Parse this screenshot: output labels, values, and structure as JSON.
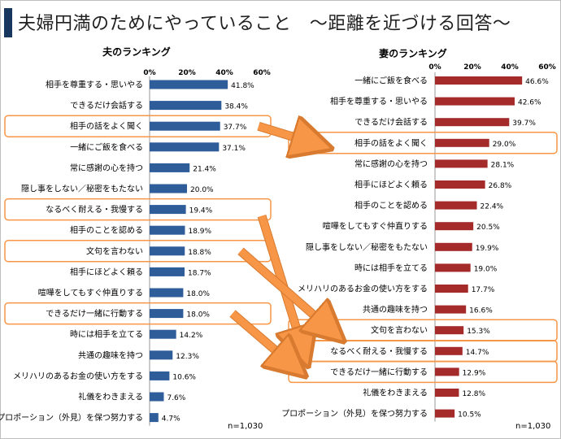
{
  "title": "夫婦円満のためにやっていること　～距離を近づける回答～",
  "colors": {
    "husband_bar": "#2e5d9a",
    "wife_bar": "#a52a2a",
    "highlight": "#f79646",
    "arrow": "#f79646",
    "title_accent": "#17375e"
  },
  "chart_data": [
    {
      "type": "bar",
      "orientation": "horizontal",
      "title": "夫のランキング",
      "xlim": [
        0,
        60
      ],
      "ticks": [
        "0%",
        "20%",
        "40%",
        "60%"
      ],
      "tick_values": [
        0,
        20,
        40,
        60
      ],
      "note": "n=1,030",
      "categories": [
        "相手を尊重する・思いやる",
        "できるだけ会話する",
        "相手の話をよく聞く",
        "一緒にご飯を食べる",
        "常に感謝の心を持つ",
        "隠し事をしない／秘密をもたない",
        "なるべく耐える・我慢する",
        "相手のことを認める",
        "文句を言わない",
        "相手にほどよく頼る",
        "喧嘩をしてもすぐ仲直りする",
        "できるだけ一緒に行動する",
        "時には相手を立てる",
        "共通の趣味を持つ",
        "メリハリのあるお金の使い方をする",
        "礼儀をわきまえる",
        "プロポーション（外見）を保つ努力する"
      ],
      "values": [
        41.8,
        38.4,
        37.7,
        37.1,
        21.4,
        20.0,
        19.4,
        18.9,
        18.8,
        18.7,
        18.0,
        18.0,
        14.2,
        12.3,
        10.6,
        7.6,
        4.7
      ],
      "value_labels": [
        "41.8%",
        "38.4%",
        "37.7%",
        "37.1%",
        "21.4%",
        "20.0%",
        "19.4%",
        "18.9%",
        "18.8%",
        "18.7%",
        "18.0%",
        "18.0%",
        "14.2%",
        "12.3%",
        "10.6%",
        "7.6%",
        "4.7%"
      ],
      "highlighted": [
        "相手の話をよく聞く",
        "なるべく耐える・我慢する",
        "文句を言わない",
        "できるだけ一緒に行動する"
      ]
    },
    {
      "type": "bar",
      "orientation": "horizontal",
      "title": "妻のランキング",
      "xlim": [
        0,
        60
      ],
      "ticks": [
        "0%",
        "20%",
        "40%",
        "60%"
      ],
      "tick_values": [
        0,
        20,
        40,
        60
      ],
      "note": "n=1,030",
      "categories": [
        "一緒にご飯を食べる",
        "相手を尊重する・思いやる",
        "できるだけ会話する",
        "相手の話をよく聞く",
        "常に感謝の心を持つ",
        "相手にほどよく頼る",
        "相手のことを認める",
        "喧嘩をしてもすぐ仲直りする",
        "隠し事をしない／秘密をもたない",
        "時には相手を立てる",
        "メリハリのあるお金の使い方をする",
        "共通の趣味を持つ",
        "文句を言わない",
        "なるべく耐える・我慢する",
        "できるだけ一緒に行動する",
        "礼儀をわきまえる",
        "プロポーション（外見）を保つ努力する"
      ],
      "values": [
        46.6,
        42.6,
        39.7,
        29.0,
        28.1,
        26.8,
        22.4,
        20.5,
        19.9,
        19.0,
        17.7,
        16.6,
        15.3,
        14.7,
        12.9,
        12.8,
        10.5
      ],
      "value_labels": [
        "46.6%",
        "42.6%",
        "39.7%",
        "29.0%",
        "28.1%",
        "26.8%",
        "22.4%",
        "20.5%",
        "19.9%",
        "19.0%",
        "17.7%",
        "16.6%",
        "15.3%",
        "14.7%",
        "12.9%",
        "12.8%",
        "10.5%"
      ],
      "highlighted": [
        "相手の話をよく聞く",
        "文句を言わない",
        "なるべく耐える・我慢する",
        "できるだけ一緒に行動する"
      ]
    }
  ],
  "arrows": [
    {
      "from": "相手の話をよく聞く",
      "to": "相手の話をよく聞く"
    },
    {
      "from": "なるべく耐える・我慢する",
      "to": "なるべく耐える・我慢する"
    },
    {
      "from": "文句を言わない",
      "to": "文句を言わない"
    },
    {
      "from": "できるだけ一緒に行動する",
      "to": "できるだけ一緒に行動する"
    }
  ]
}
